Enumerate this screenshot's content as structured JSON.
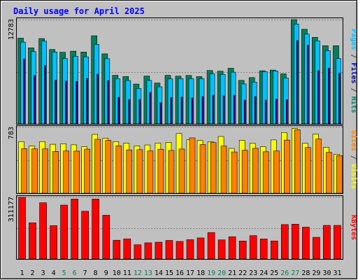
{
  "chart_data": {
    "type": "bar",
    "title": "Daily usage for April 2025",
    "categories": [
      "1",
      "2",
      "3",
      "4",
      "5",
      "6",
      "7",
      "8",
      "9",
      "10",
      "11",
      "12",
      "13",
      "14",
      "15",
      "16",
      "17",
      "18",
      "19",
      "20",
      "21",
      "22",
      "23",
      "24",
      "25",
      "26",
      "27",
      "28",
      "29",
      "30",
      "31"
    ],
    "weekend_color": "#00805c",
    "weekend_days": [
      "5",
      "6",
      "12",
      "13",
      "19",
      "20",
      "26",
      "27"
    ],
    "colors": {
      "hits": "#00805c",
      "files": "#00c0ff",
      "pages": "#0000a0",
      "visits": "#ffff00",
      "sites": "#ff8000",
      "kbytes": "#ff0000",
      "title": "#0000ff",
      "background": "#c0c0c0"
    },
    "panels": [
      {
        "ylabel_parts": [
          {
            "text": "Pages",
            "color": "#00c0ff"
          },
          {
            "text": " / ",
            "color": "#404040"
          },
          {
            "text": "Files",
            "color": "#0000a0"
          },
          {
            "text": " / ",
            "color": "#404040"
          },
          {
            "text": "Hits",
            "color": "#00805c"
          }
        ],
        "ymax_label": "12783",
        "ylim": [
          0,
          12783
        ],
        "series": [
          {
            "key": "hits",
            "values": [
              10510,
              9320,
              10460,
              9120,
              8780,
              8910,
              8800,
              10800,
              8590,
              5950,
              5810,
              4880,
              5860,
              5010,
              5950,
              5850,
              5940,
              5800,
              6550,
              6460,
              6820,
              5340,
              5680,
              6510,
              6600,
              6130,
              12783,
              11600,
              10600,
              9580,
              9580
            ]
          },
          {
            "key": "files",
            "values": [
              10030,
              8860,
              10140,
              8810,
              8010,
              8280,
              8220,
              9740,
              7990,
              5540,
              5320,
              4350,
              5330,
              4550,
              5520,
              5540,
              5540,
              5530,
              6140,
              6060,
              6340,
              4900,
              5120,
              6410,
              6490,
              5630,
              12230,
              11000,
              10180,
              8970,
              8010
            ]
          },
          {
            "key": "pages",
            "values": [
              7960,
              5930,
              7150,
              5350,
              5250,
              5200,
              5570,
              6080,
              5300,
              3240,
              2990,
              2990,
              3850,
              2590,
              3230,
              3280,
              3190,
              3350,
              3520,
              3420,
              3510,
              2920,
              3350,
              2920,
              3040,
              2960,
              10220,
              9640,
              6530,
              6850,
              6210
            ]
          }
        ]
      },
      {
        "ylabel_parts": [
          {
            "text": "Sites",
            "color": "#ff8000"
          },
          {
            "text": " / ",
            "color": "#404040"
          },
          {
            "text": "Visits",
            "color": "#ffff00"
          }
        ],
        "ymax_label": "783",
        "ylim": [
          0,
          783
        ],
        "series": [
          {
            "key": "visits",
            "values": [
              613,
              561,
              614,
              582,
              589,
              576,
              553,
              700,
              655,
              614,
              595,
              564,
              574,
              596,
              605,
              710,
              638,
              629,
              613,
              675,
              533,
              630,
              593,
              553,
              634,
              722,
              770,
              594,
              704,
              546,
              463
            ]
          },
          {
            "key": "sites",
            "values": [
              530,
              527,
              527,
              497,
              503,
              501,
              524,
              641,
              629,
              563,
              515,
              518,
              503,
              523,
              509,
              526,
              658,
              579,
              602,
              561,
              491,
              511,
              534,
              493,
              502,
              632,
              755,
              544,
              644,
              486,
              447
            ]
          }
        ]
      },
      {
        "ylabel_parts": [
          {
            "text": "KBytes",
            "color": "#ff0000"
          }
        ],
        "ymax_label": "311177",
        "ylim": [
          0,
          311177
        ],
        "series": [
          {
            "key": "kbytes",
            "values": [
              311177,
              182920,
              284000,
              168690,
              272200,
              302650,
              241200,
              302940,
              221000,
              94720,
              101900,
              71860,
              81680,
              84710,
              93860,
              88660,
              97730,
              106600,
              133710,
              96570,
              112510,
              90900,
              118080,
              100980,
              91290,
              174090,
              175830,
              160860,
              109780,
              169700,
              169700
            ]
          }
        ]
      }
    ]
  }
}
